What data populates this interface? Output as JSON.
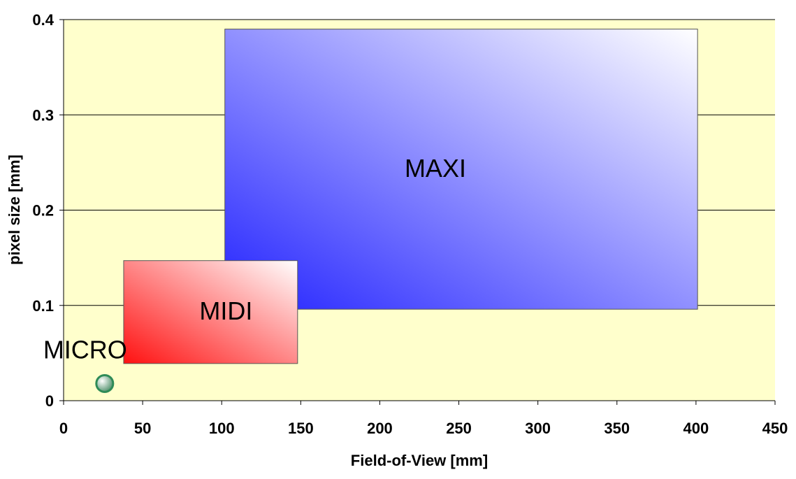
{
  "chart_data": {
    "type": "scatter",
    "title": "",
    "xlabel": "Field-of-View [mm]",
    "ylabel": "pixel size [mm]",
    "xlim": [
      0,
      450
    ],
    "ylim": [
      0,
      0.4
    ],
    "xticks": [
      "0",
      "50",
      "100",
      "150",
      "200",
      "250",
      "300",
      "350",
      "400",
      "450"
    ],
    "yticks": [
      "0",
      "0.1",
      "0.2",
      "0.3",
      "0.4"
    ],
    "grid": "horizontal",
    "plot_background": "#FFFFCC",
    "regions": [
      {
        "name": "MAXI",
        "x_range": [
          102,
          401
        ],
        "y_range": [
          0.096,
          0.39
        ],
        "gradient": [
          "#2222FF",
          "#FFFFFF"
        ]
      },
      {
        "name": "MIDI",
        "x_range": [
          38,
          148
        ],
        "y_range": [
          0.039,
          0.147
        ],
        "gradient": [
          "#FF1111",
          "#FFFFFF"
        ]
      }
    ],
    "points": [
      {
        "name": "MICRO",
        "x": 26,
        "y": 0.018,
        "color": "#2E8B57"
      }
    ]
  }
}
